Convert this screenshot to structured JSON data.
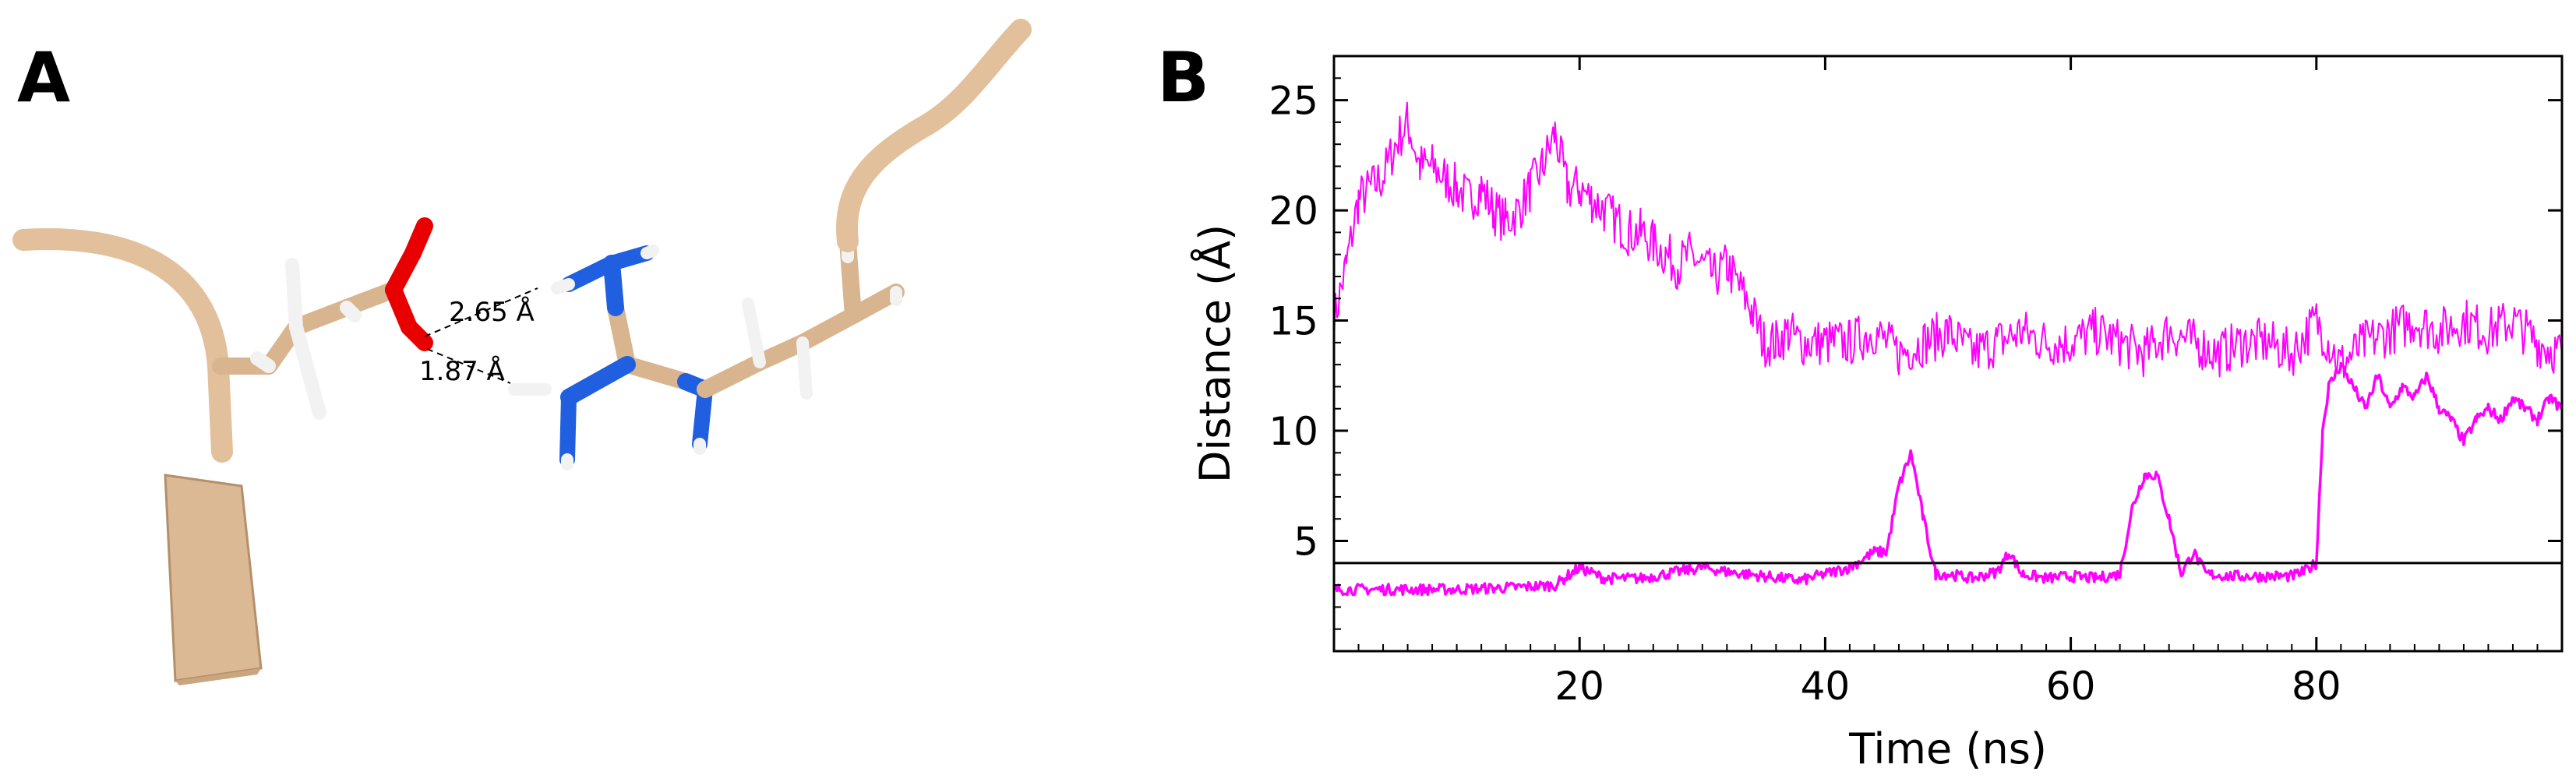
{
  "panel_a": {
    "letter": "A",
    "distances": [
      "2.65 Å",
      "1.87 Å"
    ],
    "colors": {
      "backbone": "#e2c09c",
      "carbon": "#d9b58f",
      "oxygen": "#e80000",
      "nitrogen": "#1f5fe0",
      "hydrogen": "#f2f2f2"
    }
  },
  "panel_b": {
    "letter": "B"
  },
  "chart_data": {
    "type": "line",
    "xlabel": "Time (ns)",
    "ylabel": "Distance (Å)",
    "xlim": [
      0,
      100
    ],
    "ylim": [
      0,
      27
    ],
    "xticks": [
      20,
      40,
      60,
      80
    ],
    "yticks": [
      5,
      10,
      15,
      20,
      25
    ],
    "grid": false,
    "threshold": 4,
    "threshold_color": "#000000",
    "series": [
      {
        "color": "#ff00ff",
        "thin": true,
        "points": [
          [
            0,
            15
          ],
          [
            1,
            17.5
          ],
          [
            2,
            20.5
          ],
          [
            3,
            21
          ],
          [
            4,
            21.5
          ],
          [
            5,
            23
          ],
          [
            6,
            24
          ],
          [
            7,
            22
          ],
          [
            8,
            22
          ],
          [
            9,
            21.5
          ],
          [
            10,
            21
          ],
          [
            11,
            20.5
          ],
          [
            12,
            21
          ],
          [
            13,
            20
          ],
          [
            14,
            19.5
          ],
          [
            15,
            20
          ],
          [
            16,
            21
          ],
          [
            17,
            22
          ],
          [
            18,
            23.5
          ],
          [
            19,
            21
          ],
          [
            20,
            21
          ],
          [
            21,
            20.5
          ],
          [
            22,
            20
          ],
          [
            23,
            19.5
          ],
          [
            24,
            19
          ],
          [
            25,
            19
          ],
          [
            26,
            18.5
          ],
          [
            27,
            18
          ],
          [
            28,
            17.5
          ],
          [
            29,
            18
          ],
          [
            30,
            17.5
          ],
          [
            31,
            17
          ],
          [
            32,
            17.5
          ],
          [
            33,
            16.5
          ],
          [
            34,
            15.5
          ],
          [
            35,
            14
          ],
          [
            36,
            14
          ],
          [
            37,
            14.5
          ],
          [
            38,
            14
          ],
          [
            40,
            14
          ],
          [
            42,
            14
          ],
          [
            44,
            14.5
          ],
          [
            46,
            13.5
          ],
          [
            48,
            14
          ],
          [
            50,
            14.5
          ],
          [
            52,
            13.5
          ],
          [
            54,
            14
          ],
          [
            56,
            14.5
          ],
          [
            58,
            14
          ],
          [
            60,
            14
          ],
          [
            62,
            14.5
          ],
          [
            64,
            14
          ],
          [
            66,
            13.5
          ],
          [
            68,
            14.5
          ],
          [
            70,
            14
          ],
          [
            72,
            13.5
          ],
          [
            74,
            14
          ],
          [
            76,
            14
          ],
          [
            78,
            13.5
          ],
          [
            80,
            15
          ],
          [
            82,
            13
          ],
          [
            84,
            14
          ],
          [
            86,
            14.5
          ],
          [
            88,
            15
          ],
          [
            90,
            14.5
          ],
          [
            92,
            15
          ],
          [
            94,
            14.5
          ],
          [
            96,
            15
          ],
          [
            98,
            14
          ],
          [
            100,
            13.5
          ]
        ]
      },
      {
        "color": "#ff00ff",
        "thin": false,
        "points": [
          [
            0,
            2.8
          ],
          [
            5,
            2.8
          ],
          [
            10,
            2.8
          ],
          [
            15,
            2.9
          ],
          [
            18,
            3
          ],
          [
            20,
            3.8
          ],
          [
            22,
            3.3
          ],
          [
            25,
            3.3
          ],
          [
            28,
            3.6
          ],
          [
            30,
            3.8
          ],
          [
            32,
            3.6
          ],
          [
            35,
            3.4
          ],
          [
            38,
            3.2
          ],
          [
            40,
            3.5
          ],
          [
            42,
            3.8
          ],
          [
            44,
            4.5
          ],
          [
            45,
            4.5
          ],
          [
            46,
            7.5
          ],
          [
            47,
            9
          ],
          [
            48,
            6
          ],
          [
            49,
            3.5
          ],
          [
            50,
            3.5
          ],
          [
            52,
            3.3
          ],
          [
            54,
            3.6
          ],
          [
            55,
            4.5
          ],
          [
            56,
            3.5
          ],
          [
            58,
            3.3
          ],
          [
            60,
            3.4
          ],
          [
            62,
            3.3
          ],
          [
            64,
            3.5
          ],
          [
            65,
            6.5
          ],
          [
            66,
            8
          ],
          [
            67,
            8
          ],
          [
            68,
            6
          ],
          [
            69,
            3.5
          ],
          [
            70,
            4.5
          ],
          [
            71,
            3.5
          ],
          [
            73,
            3.4
          ],
          [
            76,
            3.4
          ],
          [
            78,
            3.4
          ],
          [
            79,
            3.6
          ],
          [
            80,
            4
          ],
          [
            80.5,
            10
          ],
          [
            81,
            12
          ],
          [
            82,
            13
          ],
          [
            83,
            12
          ],
          [
            84,
            11
          ],
          [
            85,
            12.5
          ],
          [
            86,
            11
          ],
          [
            87,
            12
          ],
          [
            88,
            11.5
          ],
          [
            89,
            12.5
          ],
          [
            90,
            11
          ],
          [
            91,
            10.5
          ],
          [
            92,
            9.5
          ],
          [
            93,
            10.5
          ],
          [
            94,
            11
          ],
          [
            95,
            10.5
          ],
          [
            96,
            11.5
          ],
          [
            97,
            11
          ],
          [
            98,
            10.5
          ],
          [
            99,
            11.5
          ],
          [
            100,
            11
          ]
        ]
      }
    ]
  }
}
